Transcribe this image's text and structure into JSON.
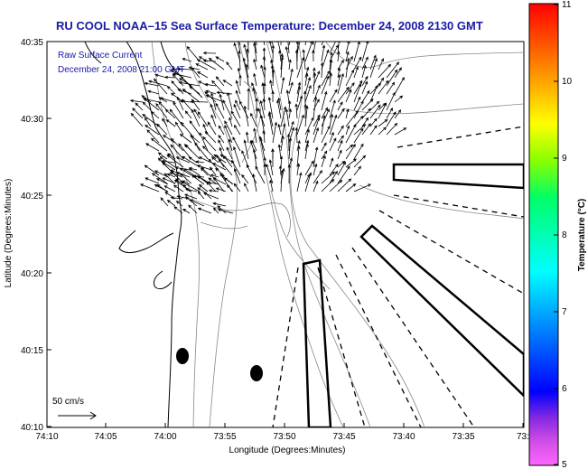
{
  "title": "RU COOL  NOAA–15  Sea Surface Temperature:  December 24, 2008 2130 GMT",
  "legend": {
    "line1": "Raw Surface Current",
    "line2": "December 24, 2008 21:00 GMT"
  },
  "axes": {
    "xlabel": "Longitude (Degrees:Minutes)",
    "ylabel": "Latitude (Degrees:Minutes)",
    "x_ticks": [
      "74:10",
      "74:05",
      "74:00",
      "73:55",
      "73:50",
      "73:45",
      "73:40",
      "73:35",
      "73:3"
    ],
    "y_ticks": [
      "40:35",
      "40:30",
      "40:25",
      "40:20",
      "40:15",
      "40:10"
    ]
  },
  "scale_bar": {
    "label": "50 cm/s"
  },
  "colorbar": {
    "label": "Temperature (°C)",
    "ticks": [
      "11",
      "10",
      "9",
      "8",
      "7",
      "6",
      "5"
    ],
    "min": 5,
    "max": 11
  },
  "colors": {
    "title": "#1a1aa6",
    "map_background": "#ffffff",
    "coastline": "#000000",
    "bathymetry": "#888888"
  }
}
